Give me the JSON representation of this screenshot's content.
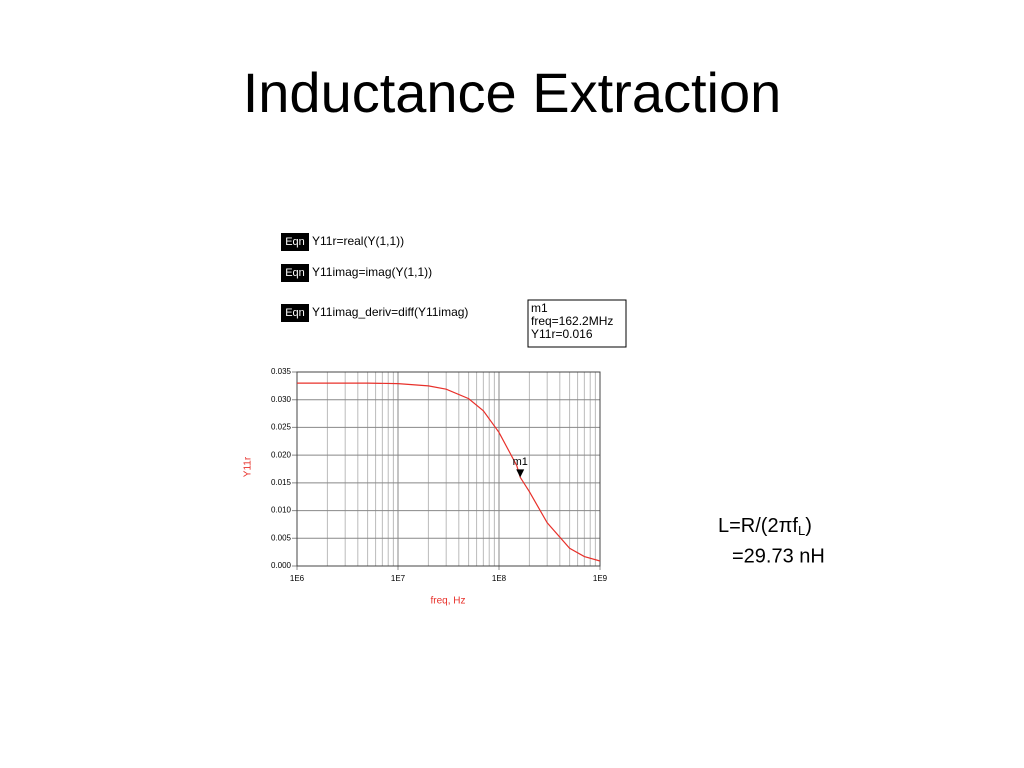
{
  "title": "Inductance Extraction",
  "equations": [
    {
      "tag": "Eqn",
      "text": "Y11r=real(Y(1,1))"
    },
    {
      "tag": "Eqn",
      "text": "Y11imag=imag(Y(1,1))"
    },
    {
      "tag": "Eqn",
      "text": "Y11imag_deriv=diff(Y11imag)"
    }
  ],
  "formula": {
    "main": "L=R/(2πf",
    "subscript": "L",
    "close": ")",
    "result": "=29.73 nH"
  },
  "chart_data": {
    "type": "line",
    "x_label": "freq, Hz",
    "y_label": "Y11r",
    "x": [
      1000000,
      2000000,
      5000000,
      10000000,
      20000000,
      30000000,
      50000000,
      70000000,
      100000000,
      150000000,
      162200000,
      200000000,
      300000000,
      500000000,
      700000000,
      1000000000
    ],
    "values": [
      0.033,
      0.033,
      0.033,
      0.0329,
      0.0325,
      0.0319,
      0.0302,
      0.028,
      0.0241,
      0.0181,
      0.016,
      0.0134,
      0.0078,
      0.0032,
      0.0017,
      0.0009
    ],
    "color": "#e8302a",
    "x_log": true,
    "xlim": [
      1000000,
      1000000000
    ],
    "xticks": [
      {
        "value": 1000000,
        "label": "1E6"
      },
      {
        "value": 10000000,
        "label": "1E7"
      },
      {
        "value": 100000000,
        "label": "1E8"
      },
      {
        "value": 1000000000,
        "label": "1E9"
      }
    ],
    "x_minor_ticks": [
      2000000,
      3000000,
      4000000,
      5000000,
      6000000,
      7000000,
      8000000,
      9000000,
      20000000,
      30000000,
      40000000,
      50000000,
      60000000,
      70000000,
      80000000,
      90000000,
      200000000,
      300000000,
      400000000,
      500000000,
      600000000,
      700000000,
      800000000,
      900000000
    ],
    "ylim": [
      0,
      0.035
    ],
    "yticks": [
      {
        "value": 0,
        "label": "0.000"
      },
      {
        "value": 0.005,
        "label": "0.005"
      },
      {
        "value": 0.01,
        "label": "0.010"
      },
      {
        "value": 0.015,
        "label": "0.015"
      },
      {
        "value": 0.02,
        "label": "0.020"
      },
      {
        "value": 0.025,
        "label": "0.025"
      },
      {
        "value": 0.03,
        "label": "0.030"
      },
      {
        "value": 0.035,
        "label": "0.035"
      }
    ],
    "grid": true,
    "marker": {
      "name": "m1",
      "x": 162200000,
      "y": 0.016,
      "box_lines": [
        "m1",
        "freq=162.2MHz",
        "Y11r=0.016"
      ]
    }
  }
}
